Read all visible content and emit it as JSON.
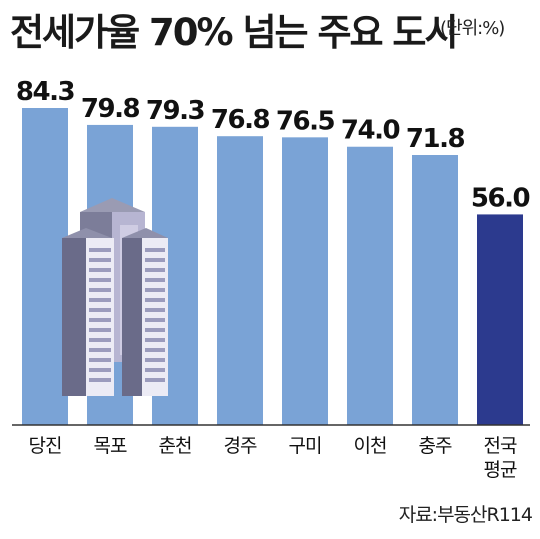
{
  "title": "전세가율 70% 넘는 주요 도시",
  "unit": "(단위:%)",
  "source": "자료:부동산R114",
  "colors": {
    "bar": "#7aa3d6",
    "highlight": "#2c3a8e",
    "axis": "#333333"
  },
  "chart_data": {
    "type": "bar",
    "categories": [
      "당진",
      "목포",
      "춘천",
      "경주",
      "구미",
      "이천",
      "충주",
      "전국\n평균"
    ],
    "values": [
      84.3,
      79.8,
      79.3,
      76.8,
      76.5,
      74.0,
      71.8,
      56.0
    ],
    "value_labels": [
      "84.3",
      "79.8",
      "79.3",
      "76.8",
      "76.5",
      "74.0",
      "71.8",
      "56.0"
    ],
    "highlight_index": 7,
    "ylim": [
      0,
      84.3
    ],
    "grid": false,
    "title": "전세가율 70% 넘는 주요 도시",
    "xlabel": "",
    "ylabel": ""
  }
}
